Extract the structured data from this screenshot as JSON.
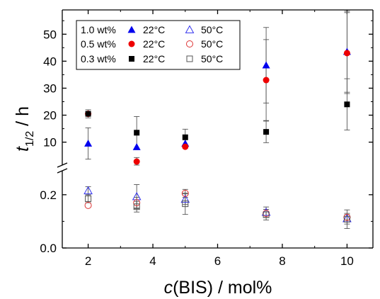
{
  "chart_data": {
    "type": "scatter",
    "xlabel_italic": "c",
    "xlabel_rest": "(BIS) / mol%",
    "ylabel_main": "t",
    "ylabel_sub": "1/2",
    "ylabel_rest": " / h",
    "xlim": [
      1.2,
      10.8
    ],
    "xticks": [
      "2",
      "4",
      "6",
      "8",
      "10"
    ],
    "y_upper": {
      "ylim": [
        1.5,
        59
      ],
      "ticks": [
        "10",
        "20",
        "30",
        "40",
        "50"
      ]
    },
    "y_lower": {
      "ylim": [
        0.0,
        0.29
      ],
      "ticks": [
        "0.0",
        "0.2"
      ]
    },
    "axis_break": true,
    "legend_rows": [
      {
        "label": "1.0 wt%",
        "t22": "22°C",
        "t50": "50°C"
      },
      {
        "label": "0.5 wt%",
        "t22": "22°C",
        "t50": "50°C"
      },
      {
        "label": "0.3 wt%",
        "t22": "22°C",
        "t50": "50°C"
      }
    ],
    "series": [
      {
        "name": "1.0 wt% 22°C",
        "marker": "triangle",
        "filled": true,
        "color": "#0000ee",
        "points": [
          {
            "x": 2,
            "y": 9.5,
            "err": 5.8
          },
          {
            "x": 3.5,
            "y": 8.2,
            "err": 0
          },
          {
            "x": 5,
            "y": 9.5,
            "err": 0
          },
          {
            "x": 7.5,
            "y": 38.5,
            "err": 14
          },
          {
            "x": 10,
            "y": 43.5,
            "err": 15
          }
        ]
      },
      {
        "name": "0.5 wt% 22°C",
        "marker": "circle",
        "filled": true,
        "color": "#ee0000",
        "points": [
          {
            "x": 2,
            "y": 20.5,
            "err": 1.5
          },
          {
            "x": 3.5,
            "y": 2.8,
            "err": 1.5
          },
          {
            "x": 5,
            "y": 8.3,
            "err": 0
          },
          {
            "x": 7.5,
            "y": 33,
            "err": 15
          },
          {
            "x": 10,
            "y": 43,
            "err": 15
          }
        ]
      },
      {
        "name": "0.3 wt% 22°C",
        "marker": "square",
        "filled": true,
        "color": "#000000",
        "points": [
          {
            "x": 2,
            "y": 20.5,
            "err": 0
          },
          {
            "x": 3.5,
            "y": 13.5,
            "err": 6
          },
          {
            "x": 5,
            "y": 11.8,
            "err": 3
          },
          {
            "x": 7.5,
            "y": 13.8,
            "err": 4
          },
          {
            "x": 10,
            "y": 24,
            "err": 9.5
          }
        ]
      },
      {
        "name": "1.0 wt% 50°C",
        "marker": "triangle",
        "filled": false,
        "color": "#3333ee",
        "points": [
          {
            "x": 2,
            "y": 0.215,
            "err": 0.015
          },
          {
            "x": 3.5,
            "y": 0.193,
            "err": 0.045
          },
          {
            "x": 5,
            "y": 0.183,
            "err": 0.02
          },
          {
            "x": 7.5,
            "y": 0.134,
            "err": 0.02
          },
          {
            "x": 10,
            "y": 0.11,
            "err": 0.02
          }
        ]
      },
      {
        "name": "0.5 wt% 50°C",
        "marker": "circle",
        "filled": false,
        "color": "#dd3333",
        "points": [
          {
            "x": 2,
            "y": 0.16,
            "err": 0
          },
          {
            "x": 3.5,
            "y": 0.17,
            "err": 0.02
          },
          {
            "x": 5,
            "y": 0.205,
            "err": 0.015
          },
          {
            "x": 7.5,
            "y": 0.13,
            "err": 0.015
          },
          {
            "x": 10,
            "y": 0.115,
            "err": 0.01
          }
        ]
      },
      {
        "name": "0.3 wt% 50°C",
        "marker": "square",
        "filled": false,
        "color": "#555555",
        "points": [
          {
            "x": 2,
            "y": 0.185,
            "err": 0.015
          },
          {
            "x": 3.5,
            "y": 0.155,
            "err": 0.02
          },
          {
            "x": 5,
            "y": 0.166,
            "err": 0.04
          },
          {
            "x": 7.5,
            "y": 0.125,
            "err": 0.02
          },
          {
            "x": 10,
            "y": 0.108,
            "err": 0.035
          }
        ]
      }
    ]
  }
}
